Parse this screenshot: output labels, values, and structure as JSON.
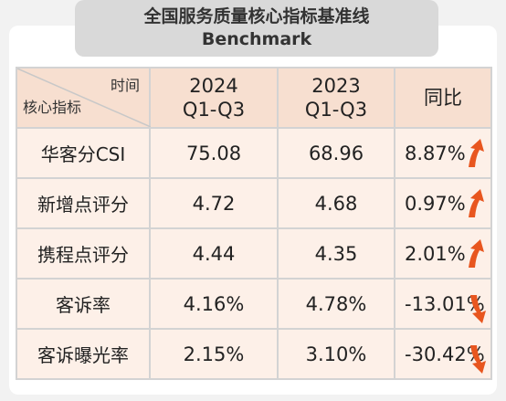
{
  "title": {
    "line1": "全国服务质量核心指标基准线",
    "line2": "Benchmark"
  },
  "header": {
    "diag_top": "时间",
    "diag_bottom": "核心指标",
    "col2_line1": "2024",
    "col2_line2": "Q1-Q3",
    "col3_line1": "2023",
    "col3_line2": "Q1-Q3",
    "col4": "同比"
  },
  "rows": [
    {
      "label": "华客分CSI",
      "v2024": "75.08",
      "v2023": "68.96",
      "yoy": "8.87%",
      "trend": "up"
    },
    {
      "label": "新增点评分",
      "v2024": "4.72",
      "v2023": "4.68",
      "yoy": "0.97%",
      "trend": "up"
    },
    {
      "label": "携程点评分",
      "v2024": "4.44",
      "v2023": "4.35",
      "yoy": "2.01%",
      "trend": "up"
    },
    {
      "label": "客诉率",
      "v2024": "4.16%",
      "v2023": "4.78%",
      "yoy": "-13.01%",
      "trend": "down"
    },
    {
      "label": "客诉曝光率",
      "v2024": "2.15%",
      "v2023": "3.10%",
      "yoy": "-30.42%",
      "trend": "down"
    }
  ],
  "colors": {
    "header_bg": "#f7dfd0",
    "row_bg": "#fdf0e8",
    "title_bg": "#d9d9d9",
    "arrow": "#e8561f"
  }
}
